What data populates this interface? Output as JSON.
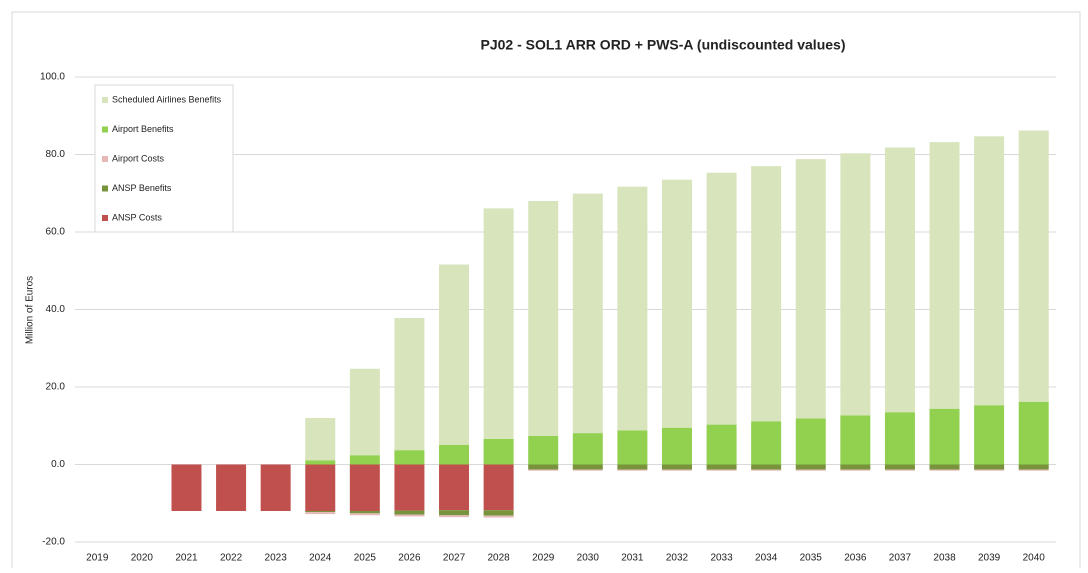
{
  "chart_data": {
    "type": "stacked_bar",
    "title": "PJ02 - SOL1 ARR ORD + PWS-A (undiscounted values)",
    "y_label": "Million of Euros",
    "categories": [
      "2019",
      "2020",
      "2021",
      "2022",
      "2023",
      "2024",
      "2025",
      "2026",
      "2027",
      "2028",
      "2029",
      "2030",
      "2031",
      "2032",
      "2033",
      "2034",
      "2035",
      "2036",
      "2037",
      "2038",
      "2039",
      "2040"
    ],
    "series": [
      {
        "name": "Scheduled Airlines Benefits",
        "color": "#d8e4bc",
        "values": [
          0,
          0,
          0,
          0,
          0,
          10.9,
          22.3,
          34.1,
          46.5,
          59.5,
          60.6,
          61.8,
          62.9,
          64.0,
          65.0,
          65.9,
          66.9,
          67.6,
          68.3,
          68.8,
          69.4,
          70.0
        ]
      },
      {
        "name": "Airport Benefits",
        "color": "#92d050",
        "values": [
          0,
          0,
          0,
          0,
          0,
          1.1,
          2.4,
          3.7,
          5.1,
          6.6,
          7.4,
          8.1,
          8.8,
          9.5,
          10.3,
          11.1,
          11.9,
          12.7,
          13.5,
          14.4,
          15.3,
          16.2
        ]
      },
      {
        "name": "Airport Costs",
        "color": "#e6b9b8",
        "values": [
          0,
          0,
          0,
          0,
          0,
          -0.5,
          -0.5,
          -0.5,
          -0.5,
          -0.5,
          -0.3,
          -0.3,
          -0.3,
          -0.3,
          -0.3,
          -0.3,
          -0.3,
          -0.3,
          -0.3,
          -0.3,
          -0.3,
          -0.3
        ]
      },
      {
        "name": "ANSP Benefits",
        "color": "#77933c",
        "values": [
          0,
          0,
          0,
          0,
          0,
          -0.3,
          -0.6,
          -1.0,
          -1.3,
          -1.4,
          -1.3,
          -1.3,
          -1.3,
          -1.3,
          -1.3,
          -1.3,
          -1.3,
          -1.3,
          -1.3,
          -1.3,
          -1.3,
          -1.3
        ]
      },
      {
        "name": "ANSP Costs",
        "color": "#c0504d",
        "values": [
          0,
          0,
          -12.0,
          -12.0,
          -12.0,
          -12.0,
          -12.0,
          -11.9,
          -11.8,
          -11.8,
          0,
          0,
          0,
          0,
          0,
          0,
          0,
          0,
          0,
          0,
          0,
          0
        ]
      }
    ],
    "ylim": [
      -20,
      100
    ],
    "yticks": [
      {
        "value": -20,
        "label": "-20.0"
      },
      {
        "value": 0,
        "label": "0.0"
      },
      {
        "value": 20,
        "label": "20.0"
      },
      {
        "value": 40,
        "label": "40.0"
      },
      {
        "value": 60,
        "label": "60.0"
      },
      {
        "value": 80,
        "label": "80.0"
      },
      {
        "value": 100,
        "label": "100.0"
      }
    ],
    "grid": true
  }
}
